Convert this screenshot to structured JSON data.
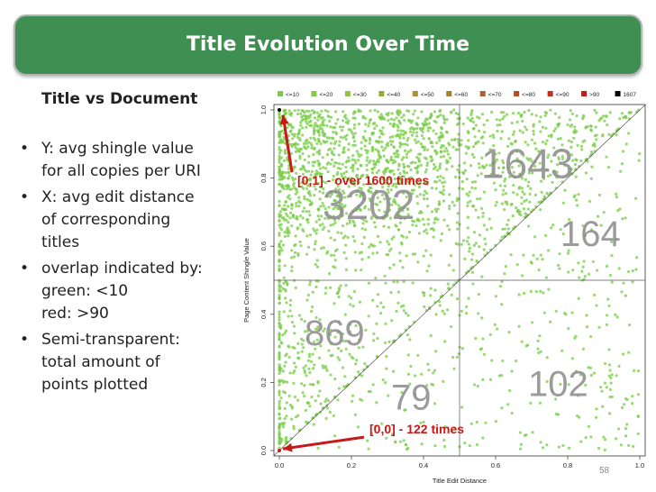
{
  "slide": {
    "title": "Title Evolution Over Time",
    "subtitle": "Title vs Document",
    "page_number": "58",
    "bullets": [
      {
        "text": "Y: avg shingle value\nfor all copies per URI"
      },
      {
        "text": "X: avg edit distance\nof corresponding\ntitles"
      },
      {
        "text": "overlap indicated by:\ngreen: <10\nred: >90"
      },
      {
        "text": "Semi-transparent:\ntotal amount of\npoints plotted"
      }
    ],
    "bullet_glyph": "•"
  },
  "chart_data": {
    "type": "scatter",
    "xlabel": "Title Edit Distance",
    "ylabel": "Page Content Shingle Value",
    "xlim": [
      0,
      1
    ],
    "ylim": [
      0,
      1
    ],
    "x_ticks": [
      "0.0",
      "0.2",
      "0.4",
      "0.6",
      "0.8",
      "1.0"
    ],
    "y_ticks": [
      "0.0",
      "0.2",
      "0.4",
      "0.6",
      "0.8",
      "1.0"
    ],
    "tick_values": [
      0,
      0.2,
      0.4,
      0.6,
      0.8,
      1.0
    ],
    "legend_position": "top",
    "legend": [
      {
        "label": "<=10",
        "color": "#7ec850"
      },
      {
        "label": "<=20",
        "color": "#86c84a"
      },
      {
        "label": "<=30",
        "color": "#8cc63f"
      },
      {
        "label": "<=40",
        "color": "#9aa83a"
      },
      {
        "label": "<=50",
        "color": "#a49234"
      },
      {
        "label": "<=60",
        "color": "#a6802f"
      },
      {
        "label": "<=70",
        "color": "#b0602a"
      },
      {
        "label": "<=80",
        "color": "#b84a26"
      },
      {
        "label": "<=90",
        "color": "#c03020"
      },
      {
        "label": ">90",
        "color": "#c81818"
      },
      {
        "label": "1607",
        "color": "#000000"
      }
    ],
    "point_color": "#77cc44",
    "quadrant_divider_x": 0.5,
    "quadrant_divider_y": 0.5,
    "quadrant_labels": [
      {
        "text": "3202",
        "x": 0.12,
        "y": 0.68
      },
      {
        "text": "1643",
        "x": 0.56,
        "y": 0.8
      },
      {
        "text": "164",
        "x": 0.78,
        "y": 0.6
      },
      {
        "text": "869",
        "x": 0.07,
        "y": 0.31
      },
      {
        "text": "79",
        "x": 0.31,
        "y": 0.12
      },
      {
        "text": "102",
        "x": 0.69,
        "y": 0.16
      }
    ],
    "annotations": [
      {
        "text": "[0,1] - over 1600 times",
        "text_x": 0.03,
        "text_y": 0.78,
        "point_x": 0.01,
        "point_y": 0.985
      },
      {
        "text": "[0,0] - 122 times",
        "text_x": 0.23,
        "text_y": 0.05,
        "point_x": 0.01,
        "point_y": 0.005
      }
    ],
    "highlight_points": [
      {
        "x": 0.0,
        "y": 1.0,
        "color": "#000000"
      },
      {
        "x": 0.0,
        "y": 0.0,
        "color": "#c81818"
      }
    ]
  }
}
